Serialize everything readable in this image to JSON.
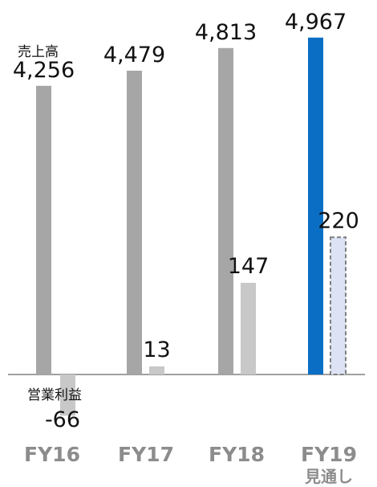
{
  "chart_data": {
    "type": "bar",
    "categories": [
      "FY16",
      "FY17",
      "FY18",
      "FY19"
    ],
    "category_sublabels": [
      "",
      "",
      "",
      "見通し"
    ],
    "series": [
      {
        "name": "売上高",
        "values": [
          4256,
          4479,
          4813,
          4967
        ],
        "value_labels": [
          "4,256",
          "4,479",
          "4,813",
          "4,967"
        ],
        "color": "#a6a6a6",
        "highlight_color": "#0a6fc4"
      },
      {
        "name": "営業利益",
        "values": [
          -66,
          13,
          147,
          220
        ],
        "value_labels": [
          "-66",
          "13",
          "147",
          "220"
        ],
        "color": "#c8c8c8",
        "forecast_color": "#dde3f5"
      }
    ],
    "forecast_category": "FY19",
    "xlabel": "",
    "ylabel": "",
    "legend": "none",
    "grid": false
  }
}
